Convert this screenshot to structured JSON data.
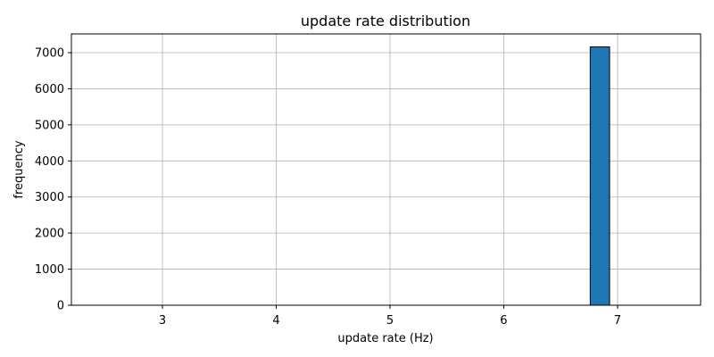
{
  "chart_data": {
    "type": "bar",
    "title": "update rate distribution",
    "xlabel": "update rate (Hz)",
    "ylabel": "frequency",
    "xlim": [
      2.2,
      7.73
    ],
    "ylim": [
      0,
      7520
    ],
    "xticks": [
      3,
      4,
      5,
      6,
      7
    ],
    "yticks": [
      0,
      1000,
      2000,
      3000,
      4000,
      5000,
      6000,
      7000
    ],
    "grid": true,
    "bar_color": "#1f77b4",
    "edge_color": "#000000",
    "bins": [
      {
        "x0": 2.3,
        "x1": 2.48,
        "value": 0
      },
      {
        "x0": 2.48,
        "x1": 2.66,
        "value": 0
      },
      {
        "x0": 2.66,
        "x1": 2.83,
        "value": 0
      },
      {
        "x0": 2.83,
        "x1": 3.01,
        "value": 0
      },
      {
        "x0": 3.01,
        "x1": 3.19,
        "value": 0
      },
      {
        "x0": 3.19,
        "x1": 3.37,
        "value": 0
      },
      {
        "x0": 3.37,
        "x1": 3.55,
        "value": 0
      },
      {
        "x0": 3.55,
        "x1": 3.73,
        "value": 0
      },
      {
        "x0": 3.73,
        "x1": 3.9,
        "value": 0
      },
      {
        "x0": 3.9,
        "x1": 4.08,
        "value": 0
      },
      {
        "x0": 4.08,
        "x1": 4.26,
        "value": 0
      },
      {
        "x0": 4.26,
        "x1": 4.44,
        "value": 0
      },
      {
        "x0": 4.44,
        "x1": 4.62,
        "value": 0
      },
      {
        "x0": 4.62,
        "x1": 4.79,
        "value": 0
      },
      {
        "x0": 4.79,
        "x1": 4.97,
        "value": 0
      },
      {
        "x0": 4.97,
        "x1": 5.15,
        "value": 0
      },
      {
        "x0": 5.15,
        "x1": 5.33,
        "value": 0
      },
      {
        "x0": 5.33,
        "x1": 5.51,
        "value": 0
      },
      {
        "x0": 5.51,
        "x1": 5.69,
        "value": 0
      },
      {
        "x0": 5.69,
        "x1": 5.86,
        "value": 0
      },
      {
        "x0": 5.86,
        "x1": 6.04,
        "value": 0
      },
      {
        "x0": 6.04,
        "x1": 6.22,
        "value": 0
      },
      {
        "x0": 6.22,
        "x1": 6.4,
        "value": 0
      },
      {
        "x0": 6.4,
        "x1": 6.58,
        "value": 0
      },
      {
        "x0": 6.58,
        "x1": 6.76,
        "value": 0
      },
      {
        "x0": 6.76,
        "x1": 6.93,
        "value": 7160
      },
      {
        "x0": 6.93,
        "x1": 7.11,
        "value": 0
      },
      {
        "x0": 7.11,
        "x1": 7.29,
        "value": 0
      },
      {
        "x0": 7.29,
        "x1": 7.47,
        "value": 0
      }
    ]
  }
}
